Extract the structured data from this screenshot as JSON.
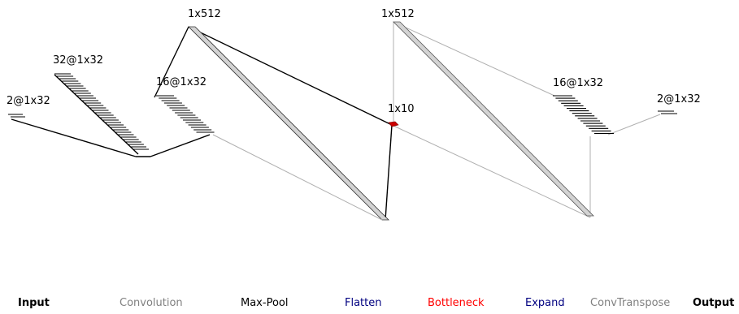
{
  "layers": {
    "input": "2@1x32",
    "conv1": "32@1x32",
    "conv2": "16@1x32",
    "flatten": "1x512",
    "bottleneck": "1x10",
    "expand": "1x512",
    "deconv1": "16@1x32",
    "output": "2@1x32"
  },
  "legend": {
    "input": "Input",
    "convolution": "Convolution",
    "max_pool": "Max-Pool",
    "flatten": "Flatten",
    "bottleneck": "Bottleneck",
    "expand": "Expand",
    "conv_transpose": "ConvTranspose",
    "output": "Output"
  },
  "colors": {
    "input": "#000000",
    "convolution": "#808080",
    "max_pool": "#000000",
    "flatten": "#000080",
    "bottleneck": "#ff0000",
    "expand": "#000080",
    "conv_transpose": "#808080",
    "output": "#000000",
    "bottleneck_fill": "#cc0000",
    "dense_fill": "#d3d3d3"
  }
}
